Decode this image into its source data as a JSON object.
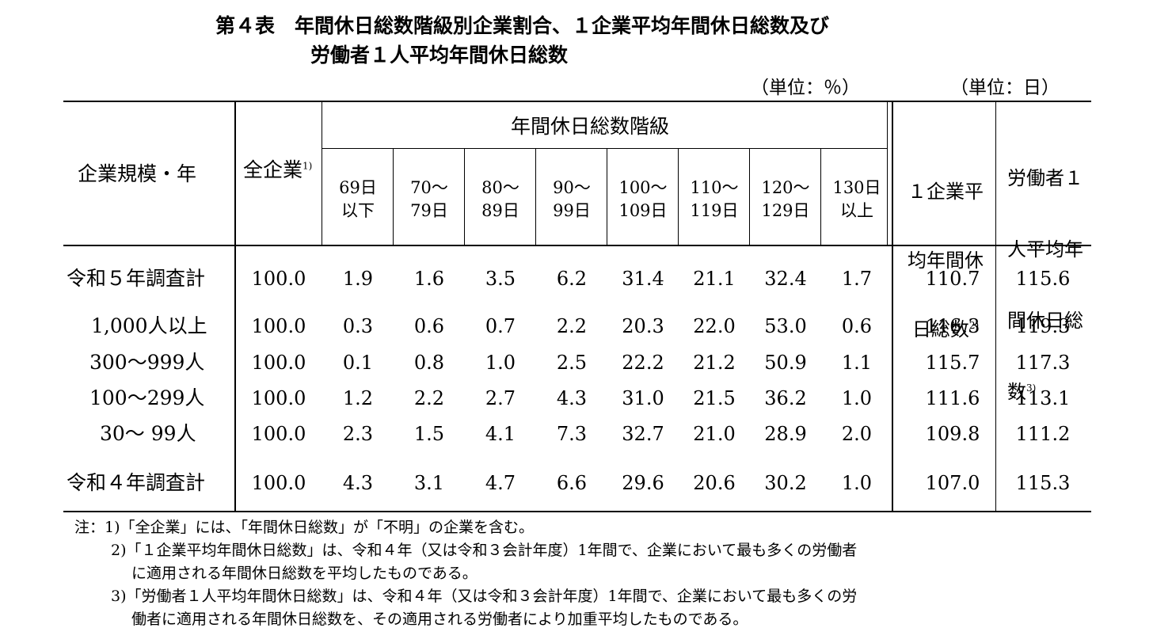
{
  "title": {
    "line1": "第４表　年間休日総数階級別企業割合、１企業平均年間休日総数及び",
    "line2": "労働者１人平均年間休日総数"
  },
  "units": {
    "percent": "（単位：％）",
    "days": "（単位：日）"
  },
  "headers": {
    "stub": "企業規模・年",
    "all": "全企業",
    "all_note": "1)",
    "class_group": "年間休日総数階級",
    "brackets": [
      [
        "69日",
        "以下"
      ],
      [
        "70～",
        "79日"
      ],
      [
        "80～",
        "89日"
      ],
      [
        "90～",
        "99日"
      ],
      [
        "100～",
        "109日"
      ],
      [
        "110～",
        "119日"
      ],
      [
        "120～",
        "129日"
      ],
      [
        "130日",
        "以上"
      ]
    ],
    "ent_avg": [
      "１企業平",
      "均年間休",
      "日総数"
    ],
    "ent_avg_note": "2)",
    "wrk_avg": [
      "労働者１",
      "人平均年",
      "間休日総",
      "数"
    ],
    "wrk_avg_note": "3)"
  },
  "rows": [
    {
      "label": "令和５年調査計",
      "values": [
        "100.0",
        "1.9",
        "1.6",
        "3.5",
        "6.2",
        "31.4",
        "21.1",
        "32.4",
        "1.7",
        "110.7",
        "115.6"
      ]
    },
    {
      "label": "1,000人以上",
      "values": [
        "100.0",
        "0.3",
        "0.6",
        "0.7",
        "2.2",
        "20.3",
        "22.0",
        "53.0",
        "0.6",
        "116.3",
        "119.3"
      ]
    },
    {
      "label": "300～999人",
      "values": [
        "100.0",
        "0.1",
        "0.8",
        "1.0",
        "2.5",
        "22.2",
        "21.2",
        "50.9",
        "1.1",
        "115.7",
        "117.3"
      ]
    },
    {
      "label": "100～299人",
      "values": [
        "100.0",
        "1.2",
        "2.2",
        "2.7",
        "4.3",
        "31.0",
        "21.5",
        "36.2",
        "1.0",
        "111.6",
        "113.1"
      ]
    },
    {
      "label": "30～ 99人",
      "values": [
        "100.0",
        "2.3",
        "1.5",
        "4.1",
        "7.3",
        "32.7",
        "21.0",
        "28.9",
        "2.0",
        "109.8",
        "111.2"
      ]
    },
    {
      "label": "令和４年調査計",
      "values": [
        "100.0",
        "4.3",
        "3.1",
        "4.7",
        "6.6",
        "29.6",
        "20.6",
        "30.2",
        "1.0",
        "107.0",
        "115.3"
      ]
    }
  ],
  "notes": [
    "注：1)「全企業」には、「年間休日総数」が「不明」の企業を含む。",
    "2)「１企業平均年間休日総数」は、令和４年（又は令和３会計年度）1年間で、企業において最も多くの労働者",
    "に適用される年間休日総数を平均したものである。",
    "3)「労働者１人平均年間休日総数」は、令和４年（又は令和３会計年度）1年間で、企業において最も多くの労",
    "働者に適用される年間休日総数を、その適用される労働者により加重平均したものである。"
  ]
}
